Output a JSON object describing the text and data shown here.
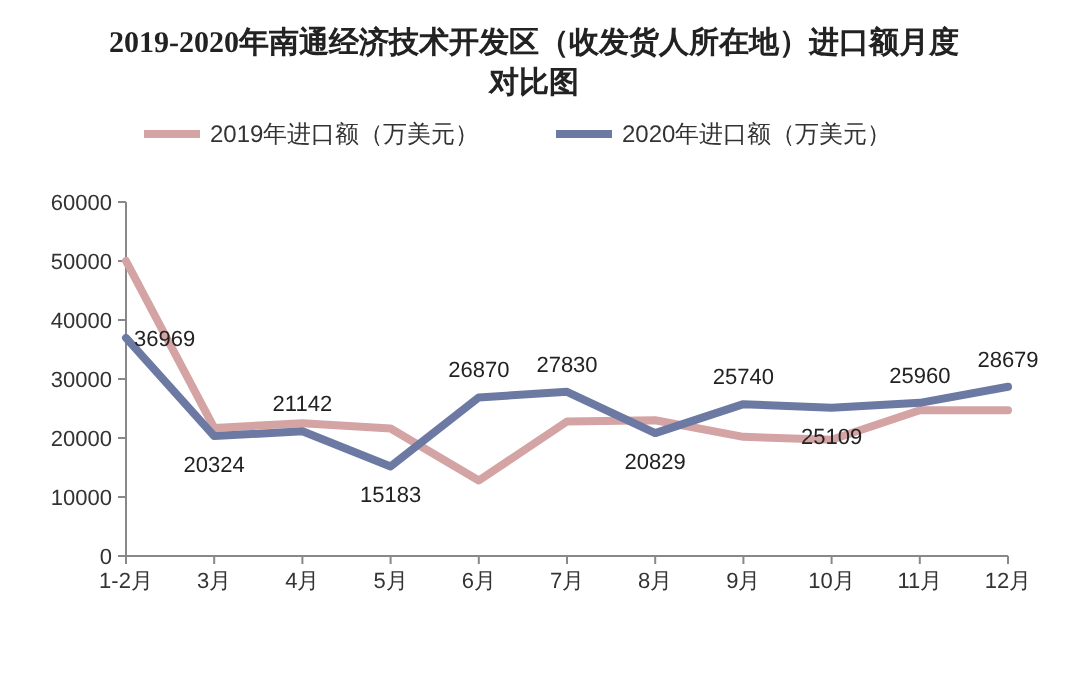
{
  "chart_data": {
    "type": "line",
    "title": "2019-2020年南通经济技术开发区（收发货人所在地）进口额月度对比图",
    "categories": [
      "1-2月",
      "3月",
      "4月",
      "5月",
      "6月",
      "7月",
      "8月",
      "9月",
      "10月",
      "11月",
      "12月"
    ],
    "series": [
      {
        "name": "2019年进口额（万美元）",
        "color": "#d4a3a3",
        "values": [
          50000,
          21700,
          22500,
          21600,
          12800,
          22800,
          23000,
          20200,
          19700,
          24700,
          24700
        ]
      },
      {
        "name": "2020年进口额（万美元）",
        "color": "#6b79a3",
        "values": [
          36969,
          20324,
          21142,
          15183,
          26870,
          27830,
          20829,
          25740,
          25109,
          25960,
          28679
        ],
        "value_labels": [
          "36969",
          "20324",
          "21142",
          "15183",
          "26870",
          "27830",
          "20829",
          "25740",
          "25109",
          "25960",
          "28679"
        ]
      }
    ],
    "ylim": [
      0,
      60000
    ],
    "yticks": [
      0,
      10000,
      20000,
      30000,
      40000,
      50000,
      60000
    ],
    "grid": false,
    "legend": "top",
    "marker": "none",
    "line_style": "solid"
  }
}
